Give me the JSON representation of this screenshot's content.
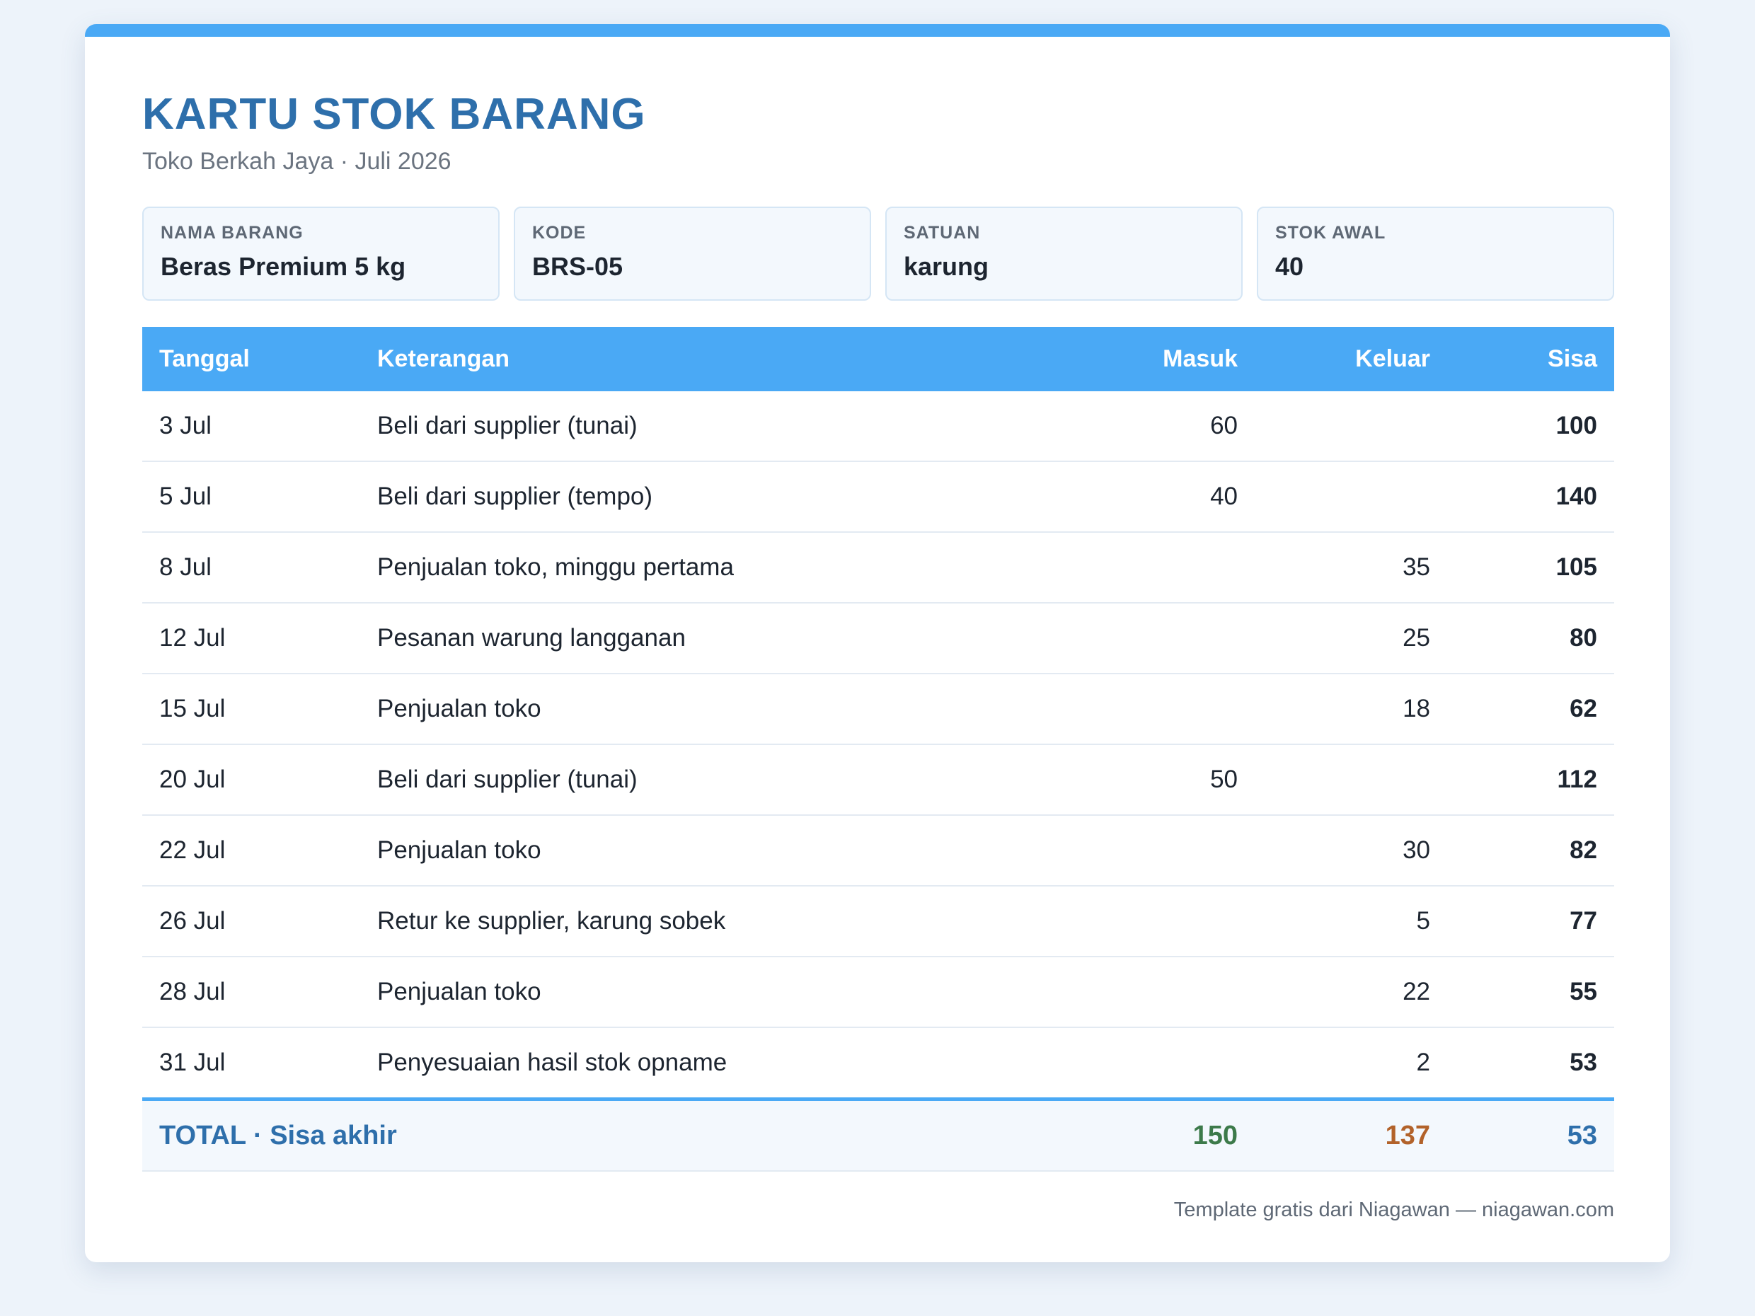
{
  "header": {
    "title": "KARTU STOK BARANG",
    "subtitle": "Toko Berkah Jaya · Juli 2026"
  },
  "info": [
    {
      "label": "NAMA BARANG",
      "value": "Beras Premium 5 kg"
    },
    {
      "label": "KODE",
      "value": "BRS-05"
    },
    {
      "label": "SATUAN",
      "value": "karung"
    },
    {
      "label": "STOK AWAL",
      "value": "40"
    }
  ],
  "table": {
    "columns": [
      "Tanggal",
      "Keterangan",
      "Masuk",
      "Keluar",
      "Sisa"
    ],
    "rows": [
      {
        "tanggal": "3 Jul",
        "keterangan": "Beli dari supplier (tunai)",
        "masuk": "60",
        "keluar": "",
        "sisa": "100"
      },
      {
        "tanggal": "5 Jul",
        "keterangan": "Beli dari supplier (tempo)",
        "masuk": "40",
        "keluar": "",
        "sisa": "140"
      },
      {
        "tanggal": "8 Jul",
        "keterangan": "Penjualan toko, minggu pertama",
        "masuk": "",
        "keluar": "35",
        "sisa": "105"
      },
      {
        "tanggal": "12 Jul",
        "keterangan": "Pesanan warung langganan",
        "masuk": "",
        "keluar": "25",
        "sisa": "80"
      },
      {
        "tanggal": "15 Jul",
        "keterangan": "Penjualan toko",
        "masuk": "",
        "keluar": "18",
        "sisa": "62"
      },
      {
        "tanggal": "20 Jul",
        "keterangan": "Beli dari supplier (tunai)",
        "masuk": "50",
        "keluar": "",
        "sisa": "112"
      },
      {
        "tanggal": "22 Jul",
        "keterangan": "Penjualan toko",
        "masuk": "",
        "keluar": "30",
        "sisa": "82"
      },
      {
        "tanggal": "26 Jul",
        "keterangan": "Retur ke supplier, karung sobek",
        "masuk": "",
        "keluar": "5",
        "sisa": "77"
      },
      {
        "tanggal": "28 Jul",
        "keterangan": "Penjualan toko",
        "masuk": "",
        "keluar": "22",
        "sisa": "55"
      },
      {
        "tanggal": "31 Jul",
        "keterangan": "Penyesuaian hasil stok opname",
        "masuk": "",
        "keluar": "2",
        "sisa": "53"
      }
    ],
    "total": {
      "label": "TOTAL · Sisa akhir",
      "masuk": "150",
      "keluar": "137",
      "sisa": "53"
    }
  },
  "footer": {
    "text": "Template gratis dari Niagawan — niagawan.com"
  },
  "colors": {
    "accent": "#4aa9f5",
    "title": "#2e6fab",
    "masuk": "#3c7a4a",
    "keluar": "#b2622a",
    "sisa": "#2e6fab"
  }
}
